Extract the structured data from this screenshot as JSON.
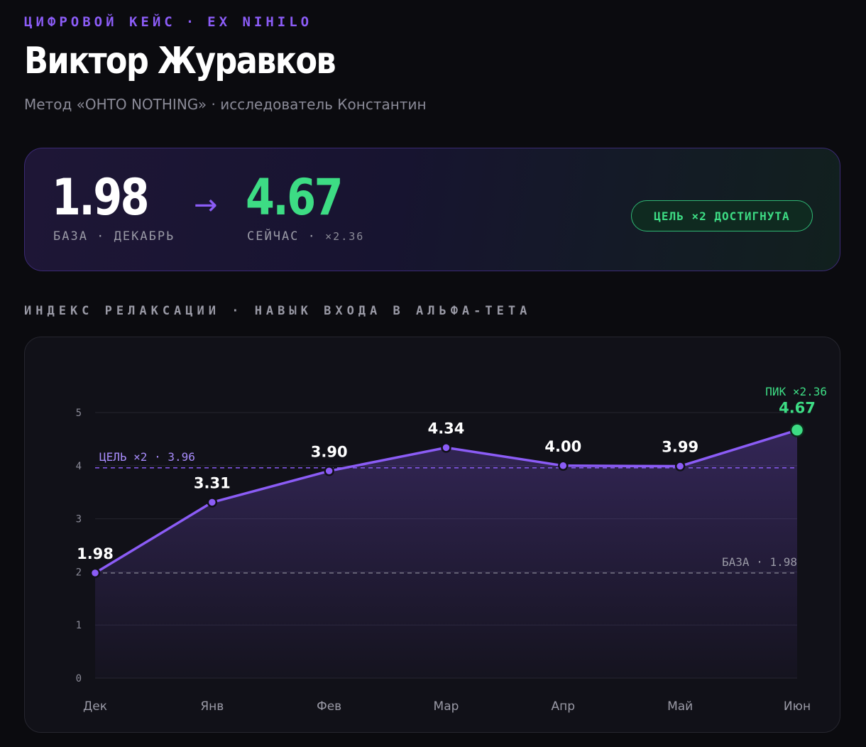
{
  "header": {
    "eyebrow_left": "ЦИФРОВОЙ КЕЙС",
    "eyebrow_sep": "·",
    "eyebrow_right": "EX NIHILO",
    "title": "Виктор Журавков",
    "subtitle": "Метод «OHTO NOTHING» · исследователь Константин"
  },
  "stats": {
    "base_value": "1.98",
    "base_label": "БАЗА · ДЕКАБРЬ",
    "arrow": "→",
    "current_value": "4.67",
    "current_label": "СЕЙЧАС ·",
    "current_multiplier": "×2.36",
    "goal_badge": "ЦЕЛЬ ×2 ДОСТИГНУТА"
  },
  "section_title": "ИНДЕКС РЕЛАКСАЦИИ · НАВЫК ВХОДА В АЛЬФА-ТЕТА",
  "colors": {
    "accent": "#8b5cf6",
    "success": "#3ddc84",
    "background": "#0b0b0f",
    "card": "#111118"
  },
  "chart_data": {
    "type": "line",
    "categories": [
      "Дек",
      "Янв",
      "Фев",
      "Мар",
      "Апр",
      "Май",
      "Июн"
    ],
    "values": [
      1.98,
      3.31,
      3.9,
      4.34,
      4.0,
      3.99,
      4.67
    ],
    "value_labels": [
      "1.98",
      "3.31",
      "3.90",
      "4.34",
      "4.00",
      "3.99",
      "4.67"
    ],
    "ylim": [
      0,
      5
    ],
    "yticks": [
      0,
      1,
      2,
      3,
      4,
      5
    ],
    "grid": true,
    "fill_area": true,
    "line_color": "#8b5cf6",
    "peak_color": "#3ddc84",
    "reference_lines": [
      {
        "value": 3.96,
        "label": "ЦЕЛЬ ×2 · 3.96",
        "color": "#8b5cf6",
        "label_position": "left"
      },
      {
        "value": 1.98,
        "label": "БАЗА · 1.98",
        "color": "#8a8a97",
        "label_position": "right"
      }
    ],
    "peak_annotation": "ПИК ×2.36"
  }
}
